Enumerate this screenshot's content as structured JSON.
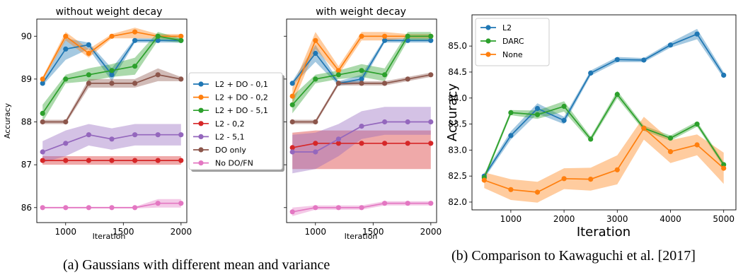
{
  "captions": {
    "a": "(a) Gaussians with different mean and variance",
    "b": "(b) Comparison to Kawaguchi et al. [2017]"
  },
  "chart_data": [
    {
      "type": "line",
      "title": "without weight decay",
      "xlabel": "Iteration",
      "ylabel": "Accuracy",
      "xlim": [
        750,
        2050
      ],
      "ylim": [
        85.65,
        90.4
      ],
      "xticks": [
        1000,
        1500,
        2000
      ],
      "yticks": [
        86,
        87,
        88,
        89,
        90
      ],
      "legend_position": "right",
      "x": [
        800,
        1000,
        1200,
        1400,
        1600,
        1800,
        2000
      ],
      "series": [
        {
          "name": "L2 + DO - 0,1",
          "color": "#1f77b4",
          "values": [
            88.9,
            89.7,
            89.8,
            89.1,
            89.9,
            89.9,
            89.9
          ],
          "lower": [
            88.85,
            89.45,
            89.7,
            88.95,
            89.85,
            89.85,
            89.85
          ],
          "upper": [
            88.95,
            89.95,
            89.85,
            89.25,
            89.95,
            89.95,
            89.95
          ]
        },
        {
          "name": "L2 + DO - 0,2",
          "color": "#ff7f0e",
          "values": [
            89.0,
            90.0,
            89.6,
            90.0,
            90.1,
            90.0,
            90.0
          ],
          "lower": [
            88.95,
            89.9,
            89.5,
            89.95,
            89.95,
            89.95,
            89.95
          ],
          "upper": [
            89.05,
            90.1,
            89.7,
            90.05,
            90.2,
            90.05,
            90.05
          ]
        },
        {
          "name": "L2 + DO - 5,1",
          "color": "#2ca02c",
          "values": [
            88.2,
            89.0,
            89.1,
            89.2,
            89.3,
            90.0,
            89.9
          ],
          "lower": [
            88.0,
            88.9,
            88.95,
            89.05,
            89.1,
            89.9,
            89.85
          ],
          "upper": [
            88.4,
            89.1,
            89.25,
            89.35,
            89.5,
            90.1,
            89.95
          ]
        },
        {
          "name": "L2  - 0,2",
          "color": "#d62728",
          "values": [
            87.1,
            87.1,
            87.1,
            87.1,
            87.1,
            87.1,
            87.1
          ],
          "lower": [
            87.0,
            87.0,
            87.0,
            87.0,
            87.0,
            87.0,
            87.0
          ],
          "upper": [
            87.2,
            87.2,
            87.2,
            87.2,
            87.2,
            87.2,
            87.2
          ]
        },
        {
          "name": "L2  - 5,1",
          "color": "#9467bd",
          "values": [
            87.3,
            87.5,
            87.7,
            87.6,
            87.7,
            87.7,
            87.7
          ],
          "lower": [
            87.05,
            87.2,
            87.45,
            87.35,
            87.45,
            87.45,
            87.45
          ],
          "upper": [
            87.55,
            87.8,
            87.95,
            87.85,
            87.95,
            87.95,
            87.95
          ]
        },
        {
          "name": "DO only",
          "color": "#8c564b",
          "values": [
            88.0,
            88.0,
            88.9,
            88.9,
            88.9,
            89.1,
            89.0
          ],
          "lower": [
            87.95,
            87.95,
            88.8,
            88.8,
            88.8,
            88.95,
            88.95
          ],
          "upper": [
            88.05,
            88.05,
            89.0,
            89.0,
            89.0,
            89.25,
            89.05
          ]
        },
        {
          "name": "No DO/FN",
          "color": "#e377c2",
          "values": [
            86.0,
            86.0,
            86.0,
            86.0,
            86.0,
            86.1,
            86.1
          ],
          "lower": [
            85.98,
            85.98,
            85.98,
            85.98,
            85.98,
            86.0,
            86.0
          ],
          "upper": [
            86.02,
            86.02,
            86.02,
            86.02,
            86.02,
            86.2,
            86.2
          ]
        }
      ]
    },
    {
      "type": "line",
      "title": "with weight decay",
      "xlabel": "Iteration",
      "ylabel": "",
      "xlim": [
        750,
        2050
      ],
      "ylim": [
        85.65,
        90.4
      ],
      "xticks": [
        1000,
        1500,
        2000
      ],
      "yticks": [
        86,
        87,
        88,
        89,
        90
      ],
      "x": [
        800,
        1000,
        1200,
        1400,
        1600,
        1800,
        2000
      ],
      "series": [
        {
          "name": "L2 + DO - 0,1",
          "color": "#1f77b4",
          "values": [
            88.9,
            89.6,
            88.9,
            89.0,
            89.9,
            89.9,
            89.9
          ],
          "lower": [
            88.85,
            89.4,
            88.85,
            88.9,
            89.85,
            89.85,
            89.85
          ],
          "upper": [
            88.95,
            89.8,
            88.95,
            89.1,
            89.95,
            89.95,
            89.95
          ]
        },
        {
          "name": "L2 + DO - 0,2",
          "color": "#ff7f0e",
          "values": [
            88.6,
            89.9,
            89.2,
            90.0,
            90.0,
            90.0,
            90.0
          ],
          "lower": [
            88.4,
            89.7,
            89.1,
            89.9,
            89.9,
            89.95,
            89.95
          ],
          "upper": [
            88.8,
            90.1,
            89.3,
            90.1,
            90.1,
            90.05,
            90.05
          ]
        },
        {
          "name": "L2 + DO - 5,1",
          "color": "#2ca02c",
          "values": [
            88.4,
            89.0,
            89.1,
            89.2,
            89.1,
            90.0,
            90.0
          ],
          "lower": [
            88.2,
            88.9,
            89.0,
            89.05,
            88.95,
            89.9,
            89.9
          ],
          "upper": [
            88.6,
            89.1,
            89.2,
            89.35,
            89.25,
            90.1,
            90.1
          ]
        },
        {
          "name": "L2  - 0,2",
          "color": "#d62728",
          "values": [
            87.4,
            87.5,
            87.5,
            87.5,
            87.5,
            87.5,
            87.5
          ],
          "lower": [
            86.9,
            86.9,
            86.9,
            86.9,
            86.9,
            86.9,
            86.9
          ],
          "upper": [
            87.75,
            87.8,
            87.8,
            87.8,
            87.8,
            87.8,
            87.8
          ]
        },
        {
          "name": "L2  - 5,1",
          "color": "#9467bd",
          "values": [
            87.3,
            87.3,
            87.6,
            87.9,
            88.0,
            88.0,
            88.0
          ],
          "lower": [
            86.8,
            86.9,
            87.2,
            87.6,
            87.7,
            87.7,
            87.7
          ],
          "upper": [
            87.7,
            87.75,
            87.95,
            88.25,
            88.35,
            88.35,
            88.35
          ]
        },
        {
          "name": "DO only",
          "color": "#8c564b",
          "values": [
            88.0,
            88.0,
            88.9,
            88.9,
            88.9,
            89.0,
            89.1
          ],
          "lower": [
            87.95,
            87.95,
            88.85,
            88.85,
            88.85,
            88.95,
            89.05
          ],
          "upper": [
            88.05,
            88.05,
            88.95,
            88.95,
            88.95,
            89.05,
            89.15
          ]
        },
        {
          "name": "No DO/FN",
          "color": "#e377c2",
          "values": [
            85.9,
            86.0,
            86.0,
            86.0,
            86.1,
            86.1,
            86.1
          ],
          "lower": [
            85.8,
            85.95,
            85.95,
            85.95,
            86.05,
            86.05,
            86.05
          ],
          "upper": [
            86.0,
            86.05,
            86.05,
            86.05,
            86.15,
            86.15,
            86.15
          ]
        }
      ]
    },
    {
      "type": "line",
      "title": "",
      "xlabel": "Iteration",
      "ylabel": "Accuracy",
      "xlim": [
        270,
        5230
      ],
      "ylim": [
        81.85,
        85.6
      ],
      "xticks": [
        1000,
        2000,
        3000,
        4000,
        5000
      ],
      "yticks": [
        82.0,
        82.5,
        83.0,
        83.5,
        84.0,
        84.5,
        85.0
      ],
      "ytick_labels": [
        "82.0",
        "82.5",
        "83.0",
        "83.5",
        "84.0",
        "84.5",
        "85.0"
      ],
      "legend_position": "top-left",
      "x": [
        500,
        1000,
        1500,
        2000,
        2500,
        3000,
        3500,
        4000,
        4500,
        5000
      ],
      "series": [
        {
          "name": "L2",
          "color": "#1f77b4",
          "values": [
            82.5,
            83.28,
            83.8,
            83.57,
            84.48,
            84.74,
            84.73,
            85.02,
            85.23,
            84.44
          ],
          "lower": [
            82.45,
            83.2,
            83.7,
            83.5,
            84.43,
            84.69,
            84.69,
            84.97,
            85.13,
            84.38
          ],
          "upper": [
            82.55,
            83.36,
            83.9,
            83.64,
            84.53,
            84.79,
            84.77,
            85.07,
            85.33,
            84.5
          ]
        },
        {
          "name": "DARC",
          "color": "#2ca02c",
          "values": [
            82.47,
            83.72,
            83.68,
            83.84,
            83.21,
            84.07,
            83.42,
            83.23,
            83.5,
            82.72
          ],
          "lower": [
            82.42,
            83.67,
            83.6,
            83.74,
            83.16,
            84.0,
            83.37,
            83.18,
            83.45,
            82.67
          ],
          "upper": [
            82.52,
            83.77,
            83.76,
            83.94,
            83.26,
            84.14,
            83.47,
            83.28,
            83.55,
            82.77
          ]
        },
        {
          "name": "None",
          "color": "#ff7f0e",
          "values": [
            82.42,
            82.24,
            82.19,
            82.45,
            82.44,
            82.62,
            83.42,
            82.97,
            83.1,
            82.65
          ],
          "lower": [
            82.27,
            82.04,
            81.99,
            82.25,
            82.22,
            82.34,
            83.2,
            82.75,
            82.9,
            82.35
          ],
          "upper": [
            82.57,
            82.44,
            82.39,
            82.65,
            82.66,
            82.9,
            83.64,
            83.19,
            83.3,
            82.95
          ]
        }
      ]
    }
  ]
}
